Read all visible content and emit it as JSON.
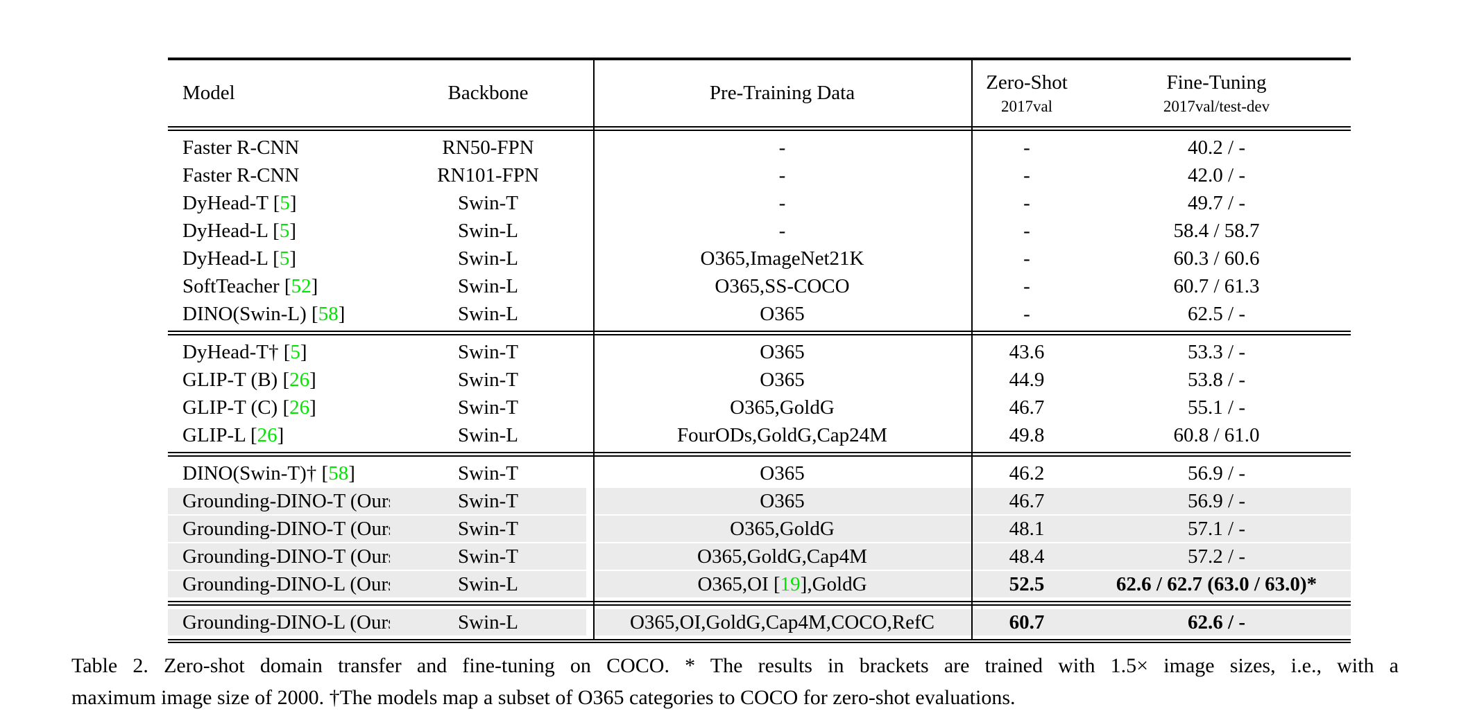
{
  "colors": {
    "citation_green": "#00e400",
    "highlight_gray": "#ebebeb",
    "rule_black": "#000000"
  },
  "table": {
    "columns": {
      "model": "Model",
      "backbone": "Backbone",
      "pretrain": "Pre-Training Data",
      "zeroshot_title": "Zero-Shot",
      "zeroshot_sub": "2017val",
      "finetune_title": "Fine-Tuning",
      "finetune_sub": "2017val/test-dev"
    },
    "groups": [
      {
        "rows": [
          {
            "model": "Faster R-CNN",
            "backbone": "RN50-FPN",
            "pretrain": "-",
            "zeroshot": "-",
            "finetune": "40.2 / -",
            "highlight": false,
            "bold": false
          },
          {
            "model": "Faster R-CNN",
            "backbone": "RN101-FPN",
            "pretrain": "-",
            "zeroshot": "-",
            "finetune": "42.0 / -",
            "highlight": false,
            "bold": false
          },
          {
            "model": "DyHead-T [5]",
            "backbone": "Swin-T",
            "pretrain": "-",
            "zeroshot": "-",
            "finetune": "49.7 / -",
            "highlight": false,
            "bold": false
          },
          {
            "model": "DyHead-L [5]",
            "backbone": "Swin-L",
            "pretrain": "-",
            "zeroshot": "-",
            "finetune": "58.4 / 58.7",
            "highlight": false,
            "bold": false
          },
          {
            "model": "DyHead-L [5]",
            "backbone": "Swin-L",
            "pretrain": "O365,ImageNet21K",
            "zeroshot": "-",
            "finetune": "60.3 / 60.6",
            "highlight": false,
            "bold": false
          },
          {
            "model": "SoftTeacher [52]",
            "backbone": "Swin-L",
            "pretrain": "O365,SS-COCO",
            "zeroshot": "-",
            "finetune": "60.7 / 61.3",
            "highlight": false,
            "bold": false
          },
          {
            "model": "DINO(Swin-L) [58]",
            "backbone": "Swin-L",
            "pretrain": "O365",
            "zeroshot": "-",
            "finetune": "62.5 / -",
            "highlight": false,
            "bold": false
          }
        ]
      },
      {
        "rows": [
          {
            "model": "DyHead-T† [5]",
            "backbone": "Swin-T",
            "pretrain": "O365",
            "zeroshot": "43.6",
            "finetune": "53.3 / -",
            "highlight": false,
            "bold": false
          },
          {
            "model": "GLIP-T (B) [26]",
            "backbone": "Swin-T",
            "pretrain": "O365",
            "zeroshot": "44.9",
            "finetune": "53.8 / -",
            "highlight": false,
            "bold": false
          },
          {
            "model": "GLIP-T (C) [26]",
            "backbone": "Swin-T",
            "pretrain": "O365,GoldG",
            "zeroshot": "46.7",
            "finetune": "55.1 / -",
            "highlight": false,
            "bold": false
          },
          {
            "model": "GLIP-L [26]",
            "backbone": "Swin-L",
            "pretrain": "FourODs,GoldG,Cap24M",
            "zeroshot": "49.8",
            "finetune": "60.8 / 61.0",
            "highlight": false,
            "bold": false
          }
        ]
      },
      {
        "rows": [
          {
            "model": "DINO(Swin-T)† [58]",
            "backbone": "Swin-T",
            "pretrain": "O365",
            "zeroshot": "46.2",
            "finetune": "56.9 / -",
            "highlight": false,
            "bold": false
          },
          {
            "model": "Grounding-DINO-T (Ours)",
            "backbone": "Swin-T",
            "pretrain": "O365",
            "zeroshot": "46.7",
            "finetune": "56.9 / -",
            "highlight": true,
            "bold": false
          },
          {
            "model": "Grounding-DINO-T (Ours)",
            "backbone": "Swin-T",
            "pretrain": "O365,GoldG",
            "zeroshot": "48.1",
            "finetune": "57.1 / -",
            "highlight": true,
            "bold": false
          },
          {
            "model": "Grounding-DINO-T (Ours)",
            "backbone": "Swin-T",
            "pretrain": "O365,GoldG,Cap4M",
            "zeroshot": "48.4",
            "finetune": "57.2 / -",
            "highlight": true,
            "bold": false
          },
          {
            "model": "Grounding-DINO-L (Ours)",
            "backbone": "Swin-L",
            "pretrain": "O365,OI [19],GoldG",
            "zeroshot": "52.5",
            "finetune": "62.6 / 62.7 (63.0 / 63.0)*",
            "highlight": true,
            "bold": true
          }
        ]
      },
      {
        "rows": [
          {
            "model": "Grounding-DINO-L (Ours)",
            "backbone": "Swin-L",
            "pretrain": "O365,OI,GoldG,Cap4M,COCO,RefC",
            "zeroshot": "60.7",
            "finetune": "62.6 / -",
            "highlight": true,
            "bold": true
          }
        ]
      }
    ]
  },
  "caption": {
    "line1": "Table 2.  Zero-shot domain transfer and fine-tuning on COCO. * The results in brackets are trained with 1.5× image sizes, i.e., with a",
    "line2": "maximum image size of 2000. †The models map a subset of O365 categories to COCO for zero-shot evaluations."
  }
}
